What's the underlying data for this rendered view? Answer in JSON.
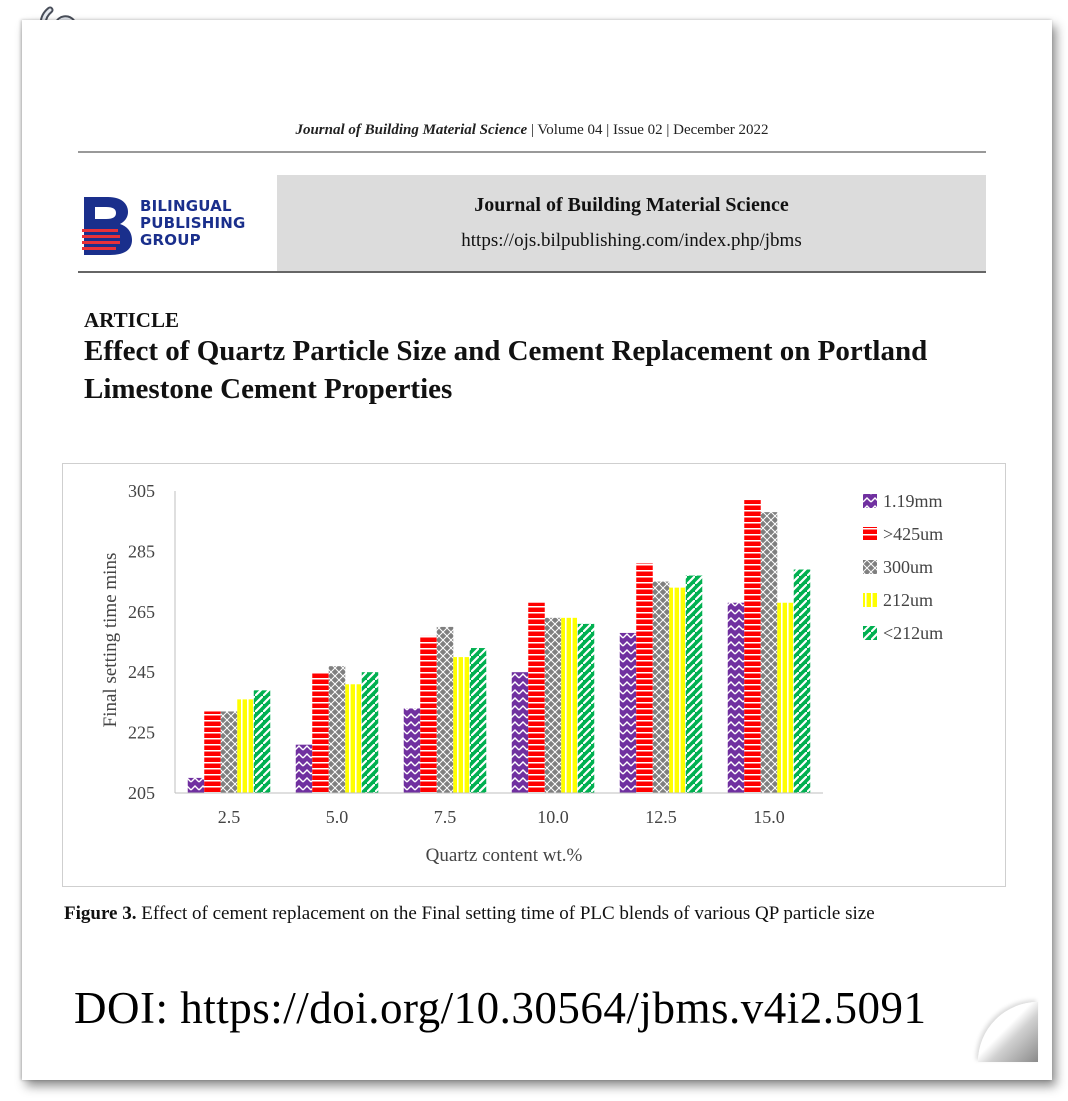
{
  "running_header": {
    "journal": "Journal of Building Material Science",
    "details": "| Volume 04 | Issue 02 | December 2022"
  },
  "publisher": {
    "line1": "BILINGUAL",
    "line2": "PUBLISHING",
    "line3": "GROUP"
  },
  "banner": {
    "journal_name": "Journal of Building Material Science",
    "url": "https://ojs.bilpublishing.com/index.php/jbms"
  },
  "article": {
    "label": "ARTICLE",
    "title": "Effect of Quartz Particle Size and Cement Replacement on Portland Limestone Cement Properties"
  },
  "figure": {
    "caption_label": "Figure 3.",
    "caption_text": " Effect of cement replacement on the Final setting time of PLC blends of various QP particle size"
  },
  "doi": "DOI: https://doi.org/10.30564/jbms.v4i2.5091",
  "colors": {
    "purple": "#7030a0",
    "red": "#ff0000",
    "gray": "#7f7f7f",
    "yellow": "#ffff00",
    "green": "#00b050",
    "logo_blue": "#1a2f8c"
  },
  "chart_data": {
    "type": "bar",
    "title": "",
    "xlabel": "Quartz content wt.%",
    "ylabel": "Final setting time mins",
    "ylim": [
      205,
      305
    ],
    "yticks": [
      205,
      225,
      245,
      265,
      285,
      305
    ],
    "categories": [
      "2.5",
      "5.0",
      "7.5",
      "10.0",
      "12.5",
      "15.0"
    ],
    "legend_position": "right",
    "series": [
      {
        "name": "1.19mm",
        "color": "#7030a0",
        "pattern": "zigzag",
        "values": [
          210,
          221,
          233,
          245,
          258,
          268
        ]
      },
      {
        "name": ">425um",
        "color": "#ff0000",
        "pattern": "hstripe",
        "values": [
          232,
          245,
          257,
          268,
          281,
          302
        ]
      },
      {
        "name": "300um",
        "color": "#7f7f7f",
        "pattern": "check",
        "values": [
          232,
          247,
          260,
          263,
          275,
          298
        ]
      },
      {
        "name": "212um",
        "color": "#ffff00",
        "pattern": "vstripe",
        "values": [
          236,
          241,
          250,
          263,
          273,
          268
        ]
      },
      {
        "name": "<212um",
        "color": "#00b050",
        "pattern": "diag",
        "values": [
          239,
          245,
          253,
          261,
          277,
          279
        ]
      }
    ]
  }
}
